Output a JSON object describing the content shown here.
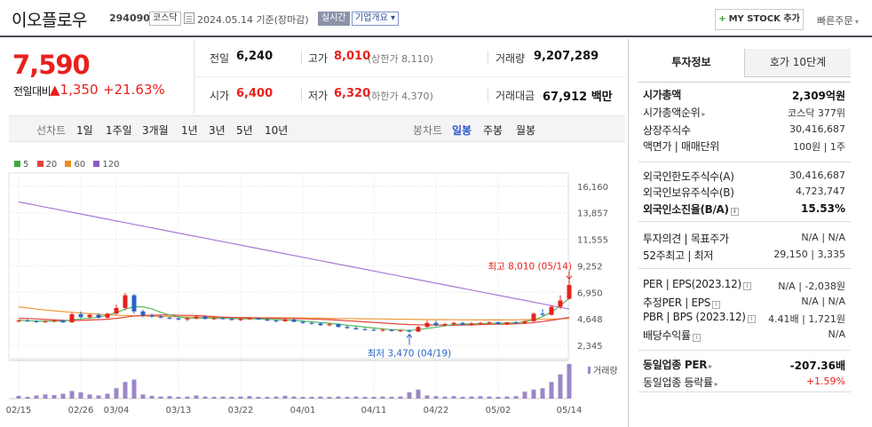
{
  "header": {
    "company_name": "이오플로우",
    "company_code": "294090",
    "market": "코스닥",
    "date_text": "2024.05.14 기준(장마감)",
    "realtime": "실시간",
    "overview": "기업개요",
    "mystock_button": "MY STOCK 추가",
    "quick_order": "빠른주문"
  },
  "price": {
    "current": "7,590",
    "prev_label": "전일대비",
    "change": "1,350",
    "change_rate": "+21.63%"
  },
  "quote": {
    "prev_label": "전일",
    "prev_value": "6,240",
    "high_label": "고가",
    "high_value": "8,010",
    "upper_limit": "(상한가 8,110)",
    "volume_label": "거래량",
    "volume_value": "9,207,289",
    "open_label": "시가",
    "open_value": "6,400",
    "low_label": "저가",
    "low_value": "6,320",
    "lower_limit": "(하한가 4,370)",
    "amount_label": "거래대금",
    "amount_value": "67,912 백만"
  },
  "period_tabs": {
    "line_label": "선차트",
    "line": [
      "1일",
      "1주일",
      "3개월",
      "1년",
      "3년",
      "5년",
      "10년"
    ],
    "candle_label": "봉차트",
    "candle": [
      "일봉",
      "주봉",
      "월봉"
    ],
    "selected": "일봉"
  },
  "chart_data": {
    "type": "candlestick",
    "legend": [
      "5",
      "20",
      "60",
      "120"
    ],
    "legend_colors": [
      "#3eaa3e",
      "#e2453c",
      "#f08a1c",
      "#8a5bc4"
    ],
    "y_ticks": [
      16160,
      13857,
      11555,
      9252,
      6950,
      4648,
      2345
    ],
    "ylim": [
      1200,
      17300
    ],
    "x_labels": [
      "02/15",
      "02/26",
      "03/04",
      "03/13",
      "03/22",
      "04/01",
      "04/11",
      "04/22",
      "05/02",
      "05/14"
    ],
    "x_label_index": [
      0,
      7,
      11,
      18,
      25,
      32,
      40,
      47,
      54,
      62
    ],
    "high_annotation": "최고 8,010 (05/14)",
    "low_annotation": "최저 3,470 (04/19)",
    "volume_label": "거래량",
    "candles": [
      {
        "o": 4450,
        "h": 4600,
        "l": 4350,
        "c": 4500
      },
      {
        "o": 4500,
        "h": 4650,
        "l": 4400,
        "c": 4450
      },
      {
        "o": 4450,
        "h": 4550,
        "l": 4300,
        "c": 4400
      },
      {
        "o": 4400,
        "h": 4500,
        "l": 4300,
        "c": 4450
      },
      {
        "o": 4450,
        "h": 4600,
        "l": 4350,
        "c": 4500
      },
      {
        "o": 4500,
        "h": 4550,
        "l": 4300,
        "c": 4350
      },
      {
        "o": 4350,
        "h": 5200,
        "l": 4300,
        "c": 5050
      },
      {
        "o": 5050,
        "h": 5300,
        "l": 4700,
        "c": 4800
      },
      {
        "o": 4800,
        "h": 5100,
        "l": 4650,
        "c": 5000
      },
      {
        "o": 5000,
        "h": 5150,
        "l": 4700,
        "c": 4750
      },
      {
        "o": 4750,
        "h": 5200,
        "l": 4700,
        "c": 5100
      },
      {
        "o": 5100,
        "h": 5900,
        "l": 5000,
        "c": 5600
      },
      {
        "o": 5600,
        "h": 6900,
        "l": 5400,
        "c": 6700
      },
      {
        "o": 6700,
        "h": 6800,
        "l": 5100,
        "c": 5300
      },
      {
        "o": 5300,
        "h": 5450,
        "l": 4800,
        "c": 4950
      },
      {
        "o": 4950,
        "h": 5100,
        "l": 4750,
        "c": 4850
      },
      {
        "o": 4850,
        "h": 5000,
        "l": 4700,
        "c": 4750
      },
      {
        "o": 4750,
        "h": 4900,
        "l": 4600,
        "c": 4700
      },
      {
        "o": 4700,
        "h": 4850,
        "l": 4500,
        "c": 4600
      },
      {
        "o": 4600,
        "h": 4800,
        "l": 4450,
        "c": 4700
      },
      {
        "o": 4700,
        "h": 4950,
        "l": 4600,
        "c": 4850
      },
      {
        "o": 4850,
        "h": 4950,
        "l": 4600,
        "c": 4650
      },
      {
        "o": 4650,
        "h": 4800,
        "l": 4550,
        "c": 4700
      },
      {
        "o": 4700,
        "h": 4850,
        "l": 4600,
        "c": 4650
      },
      {
        "o": 4650,
        "h": 4750,
        "l": 4500,
        "c": 4550
      },
      {
        "o": 4550,
        "h": 4750,
        "l": 4450,
        "c": 4650
      },
      {
        "o": 4650,
        "h": 4800,
        "l": 4550,
        "c": 4700
      },
      {
        "o": 4700,
        "h": 4800,
        "l": 4550,
        "c": 4600
      },
      {
        "o": 4600,
        "h": 4700,
        "l": 4450,
        "c": 4500
      },
      {
        "o": 4500,
        "h": 4600,
        "l": 4350,
        "c": 4450
      },
      {
        "o": 4450,
        "h": 4700,
        "l": 4400,
        "c": 4600
      },
      {
        "o": 4600,
        "h": 4700,
        "l": 4350,
        "c": 4400
      },
      {
        "o": 4400,
        "h": 4500,
        "l": 4200,
        "c": 4300
      },
      {
        "o": 4300,
        "h": 4400,
        "l": 4150,
        "c": 4250
      },
      {
        "o": 4250,
        "h": 4350,
        "l": 4050,
        "c": 4100
      },
      {
        "o": 4100,
        "h": 4300,
        "l": 4000,
        "c": 4200
      },
      {
        "o": 4200,
        "h": 4250,
        "l": 3900,
        "c": 3950
      },
      {
        "o": 3950,
        "h": 4100,
        "l": 3800,
        "c": 3850
      },
      {
        "o": 3850,
        "h": 4000,
        "l": 3700,
        "c": 3750
      },
      {
        "o": 3750,
        "h": 3900,
        "l": 3650,
        "c": 3700
      },
      {
        "o": 3700,
        "h": 3850,
        "l": 3600,
        "c": 3650
      },
      {
        "o": 3650,
        "h": 3800,
        "l": 3550,
        "c": 3700
      },
      {
        "o": 3700,
        "h": 3750,
        "l": 3550,
        "c": 3600
      },
      {
        "o": 3600,
        "h": 3700,
        "l": 3500,
        "c": 3650
      },
      {
        "o": 3650,
        "h": 3700,
        "l": 3470,
        "c": 3550
      },
      {
        "o": 3550,
        "h": 4050,
        "l": 3500,
        "c": 3950
      },
      {
        "o": 3950,
        "h": 4500,
        "l": 3900,
        "c": 4300
      },
      {
        "o": 4300,
        "h": 4500,
        "l": 4000,
        "c": 4100
      },
      {
        "o": 4100,
        "h": 4300,
        "l": 4000,
        "c": 4200
      },
      {
        "o": 4200,
        "h": 4400,
        "l": 4100,
        "c": 4300
      },
      {
        "o": 4300,
        "h": 4400,
        "l": 4100,
        "c": 4150
      },
      {
        "o": 4150,
        "h": 4350,
        "l": 4050,
        "c": 4250
      },
      {
        "o": 4250,
        "h": 4400,
        "l": 4150,
        "c": 4300
      },
      {
        "o": 4300,
        "h": 4450,
        "l": 4200,
        "c": 4350
      },
      {
        "o": 4350,
        "h": 4450,
        "l": 4150,
        "c": 4200
      },
      {
        "o": 4200,
        "h": 4400,
        "l": 4100,
        "c": 4350
      },
      {
        "o": 4350,
        "h": 4450,
        "l": 4200,
        "c": 4300
      },
      {
        "o": 4300,
        "h": 4500,
        "l": 4200,
        "c": 4450
      },
      {
        "o": 4450,
        "h": 5200,
        "l": 4400,
        "c": 5100
      },
      {
        "o": 5100,
        "h": 5500,
        "l": 4900,
        "c": 5000
      },
      {
        "o": 5000,
        "h": 5850,
        "l": 4950,
        "c": 5700
      },
      {
        "o": 5700,
        "h": 6700,
        "l": 5500,
        "c": 6240
      },
      {
        "o": 6400,
        "h": 8010,
        "l": 6320,
        "c": 7590
      }
    ],
    "volume": [
      8,
      5,
      9,
      12,
      10,
      14,
      22,
      18,
      12,
      9,
      14,
      30,
      48,
      55,
      12,
      8,
      6,
      7,
      5,
      6,
      9,
      6,
      5,
      6,
      5,
      6,
      7,
      5,
      5,
      6,
      8,
      6,
      5,
      5,
      6,
      5,
      6,
      5,
      6,
      5,
      5,
      6,
      5,
      6,
      18,
      26,
      9,
      7,
      6,
      7,
      5,
      6,
      7,
      6,
      5,
      6,
      7,
      20,
      26,
      30,
      48,
      70,
      100
    ],
    "ma5": [
      4520,
      4500,
      4470,
      4440,
      4450,
      4440,
      4580,
      4640,
      4720,
      4800,
      4980,
      5200,
      5500,
      5700,
      5700,
      5520,
      5220,
      4980,
      4820,
      4730,
      4720,
      4720,
      4710,
      4700,
      4680,
      4660,
      4650,
      4640,
      4620,
      4580,
      4560,
      4520,
      4470,
      4400,
      4330,
      4270,
      4200,
      4100,
      4020,
      3940,
      3860,
      3780,
      3720,
      3680,
      3650,
      3720,
      3820,
      3920,
      4050,
      4170,
      4200,
      4220,
      4240,
      4260,
      4270,
      4280,
      4310,
      4420,
      4560,
      4840,
      5240,
      5800,
      6440
    ],
    "ma20": [
      4700,
      4680,
      4650,
      4600,
      4560,
      4520,
      4500,
      4520,
      4550,
      4580,
      4620,
      4700,
      4800,
      4900,
      4950,
      4970,
      4980,
      4980,
      4970,
      4960,
      4950,
      4900,
      4850,
      4800,
      4780,
      4760,
      4740,
      4720,
      4710,
      4700,
      4690,
      4680,
      4660,
      4640,
      4610,
      4580,
      4540,
      4490,
      4440,
      4390,
      4340,
      4290,
      4240,
      4200,
      4160,
      4140,
      4130,
      4120,
      4110,
      4100,
      4110,
      4130,
      4150,
      4170,
      4190,
      4200,
      4220,
      4260,
      4330,
      4420,
      4520,
      4640,
      4780
    ],
    "ma60": [
      5700,
      5600,
      5500,
      5420,
      5350,
      5280,
      5220,
      5160,
      5100,
      5050,
      5000,
      4960,
      4940,
      4920,
      4900,
      4880,
      4860,
      4840,
      4830,
      4820,
      4810,
      4800,
      4790,
      4780,
      4775,
      4770,
      4765,
      4760,
      4755,
      4750,
      4745,
      4740,
      4730,
      4720,
      4710,
      4700,
      4690,
      4680,
      4670,
      4660,
      4650,
      4640,
      4630,
      4620,
      4610,
      4600,
      4590,
      4585,
      4580,
      4575,
      4570,
      4565,
      4560,
      4560,
      4560,
      4565,
      4570,
      4580,
      4590,
      4610,
      4630,
      4660,
      4700
    ],
    "ma120": [
      14800,
      14650,
      14500,
      14350,
      14200,
      14050,
      13900,
      13750,
      13600,
      13450,
      13300,
      13150,
      13000,
      12850,
      12700,
      12550,
      12400,
      12250,
      12100,
      11950,
      11800,
      11650,
      11500,
      11350,
      11200,
      11050,
      10900,
      10750,
      10600,
      10450,
      10300,
      10150,
      10000,
      9850,
      9700,
      9550,
      9400,
      9250,
      9100,
      8950,
      8800,
      8650,
      8500,
      8350,
      8200,
      8050,
      7900,
      7750,
      7600,
      7450,
      7300,
      7150,
      7000,
      6850,
      6700,
      6550,
      6400,
      6250,
      6100,
      5950,
      5800,
      5650,
      5500
    ]
  },
  "invest_panel": {
    "tab_active": "투자정보",
    "tab_other": "호가 10단계",
    "rows": [
      {
        "label": "시가총액",
        "value": "2,309억원",
        "bold": true
      },
      {
        "label": "시가총액순위",
        "value": "코스닥 377위",
        "arrow": true
      },
      {
        "label": "상장주식수",
        "value": "30,416,687"
      },
      {
        "label": "액면가 | 매매단위",
        "value": "100원 | 1주"
      },
      {
        "label": "외국인한도주식수(A)",
        "value": "30,416,687"
      },
      {
        "label": "외국인보유주식수(B)",
        "value": "4,723,747"
      },
      {
        "label": "외국인소진율(B/A)",
        "value": "15.53%",
        "bold": true,
        "info": true
      },
      {
        "label": "투자의견 | 목표주가",
        "value": "N/A | N/A"
      },
      {
        "label": "52주최고 | 최저",
        "value": "29,150 | 3,335"
      },
      {
        "label": "PER | EPS(2023.12)",
        "value": "N/A | -2,038원",
        "info": true
      },
      {
        "label": "추정PER | EPS",
        "value": "N/A | N/A",
        "info": true
      },
      {
        "label": "PBR | BPS (2023.12)",
        "value": "4.41배 | 1,721원",
        "info": true
      },
      {
        "label": "배당수익률",
        "value": "N/A",
        "info": true
      },
      {
        "label": "동일업종 PER",
        "value": "-207.36배",
        "bold": true,
        "arrow": true
      },
      {
        "label": "동일업종 등락률",
        "value": "+1.59%",
        "red": true,
        "arrow": true
      }
    ]
  }
}
